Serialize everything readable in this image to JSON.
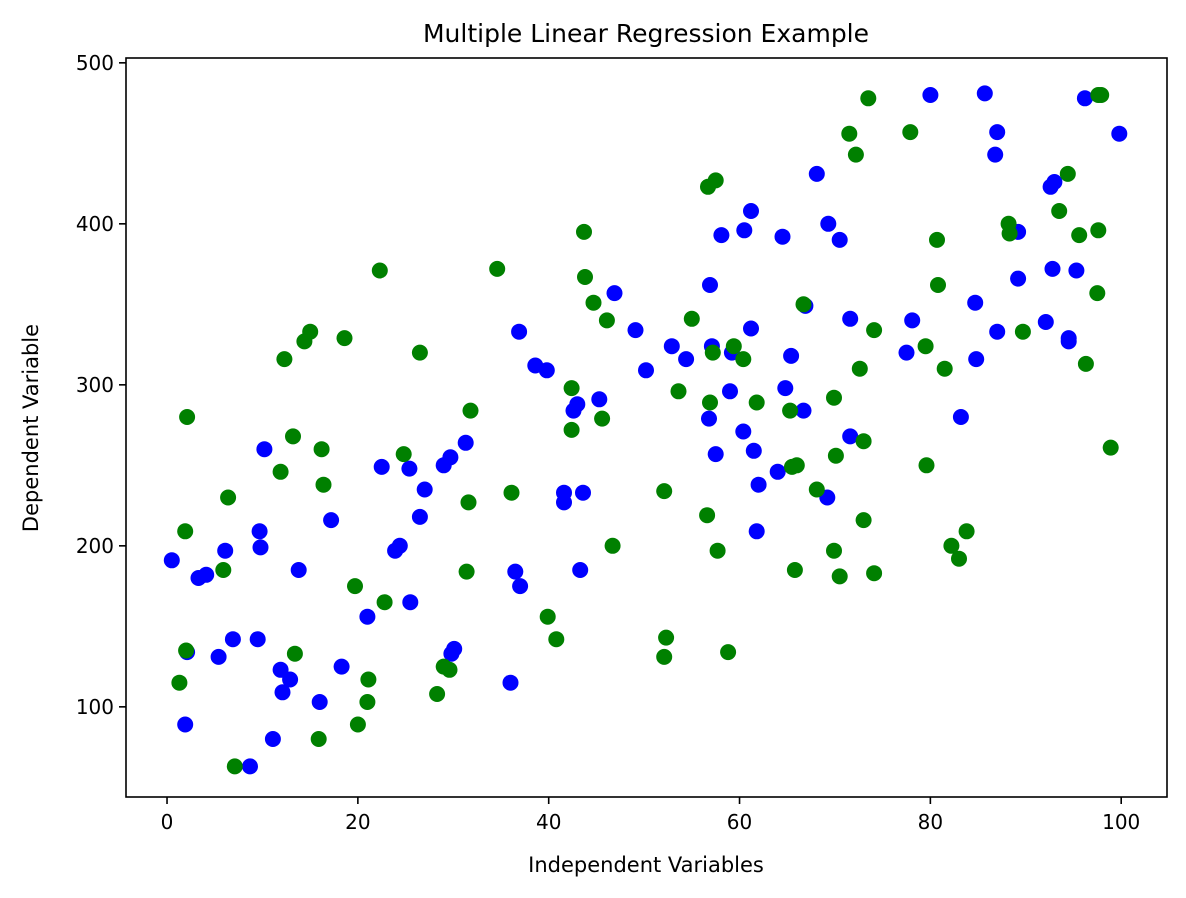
{
  "chart_data": {
    "type": "scatter",
    "title": "Multiple Linear Regression Example",
    "xlabel": "Independent Variables",
    "ylabel": "Dependent Variable",
    "xlim": [
      -4.3,
      104.8
    ],
    "ylim": [
      44,
      503
    ],
    "xticks": [
      0,
      20,
      40,
      60,
      80,
      100
    ],
    "yticks": [
      100,
      200,
      300,
      400,
      500
    ],
    "grid": false,
    "legend": "none",
    "series": [
      {
        "color": "#0000ff",
        "points": [
          [
            0.5,
            191
          ],
          [
            1.9,
            89
          ],
          [
            2.1,
            134
          ],
          [
            3.3,
            180
          ],
          [
            4.1,
            182
          ],
          [
            5.4,
            131
          ],
          [
            6.1,
            197
          ],
          [
            6.9,
            142
          ],
          [
            8.7,
            63
          ],
          [
            9.5,
            142
          ],
          [
            9.7,
            209
          ],
          [
            9.8,
            199
          ],
          [
            10.2,
            260
          ],
          [
            11.1,
            80
          ],
          [
            11.9,
            123
          ],
          [
            12.1,
            109
          ],
          [
            12.9,
            117
          ],
          [
            13.8,
            185
          ],
          [
            16.0,
            103
          ],
          [
            17.2,
            216
          ],
          [
            18.3,
            125
          ],
          [
            21.0,
            156
          ],
          [
            22.5,
            249
          ],
          [
            23.9,
            197
          ],
          [
            24.4,
            200
          ],
          [
            25.4,
            248
          ],
          [
            25.5,
            165
          ],
          [
            26.5,
            218
          ],
          [
            27.0,
            235
          ],
          [
            29.0,
            250
          ],
          [
            29.7,
            255
          ],
          [
            29.8,
            133
          ],
          [
            30.1,
            136
          ],
          [
            31.3,
            264
          ],
          [
            36.0,
            115
          ],
          [
            36.5,
            184
          ],
          [
            36.9,
            333
          ],
          [
            37.0,
            175
          ],
          [
            38.6,
            312
          ],
          [
            39.8,
            309
          ],
          [
            41.6,
            227
          ],
          [
            41.6,
            233
          ],
          [
            42.6,
            284
          ],
          [
            43.0,
            288
          ],
          [
            43.3,
            185
          ],
          [
            43.6,
            233
          ],
          [
            45.3,
            291
          ],
          [
            46.9,
            357
          ],
          [
            49.1,
            334
          ],
          [
            50.2,
            309
          ],
          [
            52.9,
            324
          ],
          [
            54.4,
            316
          ],
          [
            56.8,
            279
          ],
          [
            56.9,
            362
          ],
          [
            57.1,
            324
          ],
          [
            57.5,
            257
          ],
          [
            58.1,
            393
          ],
          [
            59.0,
            296
          ],
          [
            59.2,
            320
          ],
          [
            60.4,
            271
          ],
          [
            60.5,
            396
          ],
          [
            61.2,
            335
          ],
          [
            61.2,
            408
          ],
          [
            61.5,
            259
          ],
          [
            61.8,
            209
          ],
          [
            62.0,
            238
          ],
          [
            64.0,
            246
          ],
          [
            64.5,
            392
          ],
          [
            64.8,
            298
          ],
          [
            65.4,
            318
          ],
          [
            66.7,
            284
          ],
          [
            66.9,
            349
          ],
          [
            68.1,
            431
          ],
          [
            69.2,
            230
          ],
          [
            69.3,
            400
          ],
          [
            70.5,
            390
          ],
          [
            71.6,
            268
          ],
          [
            71.6,
            341
          ],
          [
            77.5,
            320
          ],
          [
            78.1,
            340
          ],
          [
            80.0,
            480
          ],
          [
            83.2,
            280
          ],
          [
            84.7,
            351
          ],
          [
            84.8,
            316
          ],
          [
            85.7,
            481
          ],
          [
            86.8,
            443
          ],
          [
            87.0,
            333
          ],
          [
            87.0,
            457
          ],
          [
            89.2,
            395
          ],
          [
            89.2,
            366
          ],
          [
            92.1,
            339
          ],
          [
            92.6,
            423
          ],
          [
            92.8,
            372
          ],
          [
            93.0,
            426
          ],
          [
            94.5,
            329
          ],
          [
            94.5,
            327
          ],
          [
            95.3,
            371
          ],
          [
            96.2,
            478
          ],
          [
            99.8,
            456
          ]
        ]
      },
      {
        "color": "#008000",
        "points": [
          [
            1.3,
            115
          ],
          [
            1.9,
            209
          ],
          [
            2.0,
            135
          ],
          [
            2.1,
            280
          ],
          [
            5.9,
            185
          ],
          [
            6.4,
            230
          ],
          [
            7.1,
            63
          ],
          [
            11.9,
            246
          ],
          [
            12.3,
            316
          ],
          [
            13.2,
            268
          ],
          [
            13.4,
            133
          ],
          [
            14.4,
            327
          ],
          [
            15.0,
            333
          ],
          [
            15.9,
            80
          ],
          [
            16.2,
            260
          ],
          [
            16.4,
            238
          ],
          [
            18.6,
            329
          ],
          [
            19.7,
            175
          ],
          [
            20.0,
            89
          ],
          [
            21.0,
            103
          ],
          [
            21.1,
            117
          ],
          [
            22.3,
            371
          ],
          [
            22.8,
            165
          ],
          [
            24.8,
            257
          ],
          [
            26.5,
            320
          ],
          [
            28.3,
            108
          ],
          [
            29.0,
            125
          ],
          [
            29.6,
            123
          ],
          [
            31.4,
            184
          ],
          [
            31.6,
            227
          ],
          [
            31.8,
            284
          ],
          [
            34.6,
            372
          ],
          [
            36.1,
            233
          ],
          [
            39.9,
            156
          ],
          [
            40.8,
            142
          ],
          [
            42.4,
            298
          ],
          [
            42.4,
            272
          ],
          [
            43.7,
            395
          ],
          [
            43.8,
            367
          ],
          [
            44.7,
            351
          ],
          [
            45.6,
            279
          ],
          [
            46.1,
            340
          ],
          [
            46.7,
            200
          ],
          [
            52.1,
            131
          ],
          [
            52.1,
            234
          ],
          [
            52.3,
            143
          ],
          [
            53.6,
            296
          ],
          [
            55.0,
            341
          ],
          [
            56.6,
            219
          ],
          [
            56.7,
            423
          ],
          [
            56.9,
            289
          ],
          [
            57.2,
            320
          ],
          [
            57.5,
            427
          ],
          [
            57.7,
            197
          ],
          [
            58.8,
            134
          ],
          [
            59.4,
            324
          ],
          [
            60.4,
            316
          ],
          [
            61.8,
            289
          ],
          [
            65.3,
            284
          ],
          [
            65.5,
            249
          ],
          [
            65.8,
            185
          ],
          [
            66.0,
            250
          ],
          [
            66.7,
            350
          ],
          [
            68.1,
            235
          ],
          [
            69.9,
            292
          ],
          [
            69.9,
            197
          ],
          [
            70.1,
            256
          ],
          [
            70.5,
            181
          ],
          [
            71.5,
            456
          ],
          [
            72.2,
            443
          ],
          [
            72.6,
            310
          ],
          [
            73.0,
            265
          ],
          [
            73.0,
            216
          ],
          [
            73.5,
            478
          ],
          [
            74.1,
            183
          ],
          [
            74.1,
            334
          ],
          [
            77.9,
            457
          ],
          [
            79.5,
            324
          ],
          [
            79.6,
            250
          ],
          [
            80.7,
            390
          ],
          [
            80.8,
            362
          ],
          [
            81.5,
            310
          ],
          [
            82.2,
            200
          ],
          [
            83.0,
            192
          ],
          [
            83.8,
            209
          ],
          [
            88.2,
            400
          ],
          [
            88.3,
            394
          ],
          [
            89.7,
            333
          ],
          [
            93.5,
            408
          ],
          [
            94.4,
            431
          ],
          [
            95.6,
            393
          ],
          [
            96.3,
            313
          ],
          [
            97.5,
            357
          ],
          [
            97.6,
            396
          ],
          [
            97.6,
            480
          ],
          [
            97.9,
            480
          ],
          [
            98.9,
            261
          ]
        ]
      }
    ]
  }
}
